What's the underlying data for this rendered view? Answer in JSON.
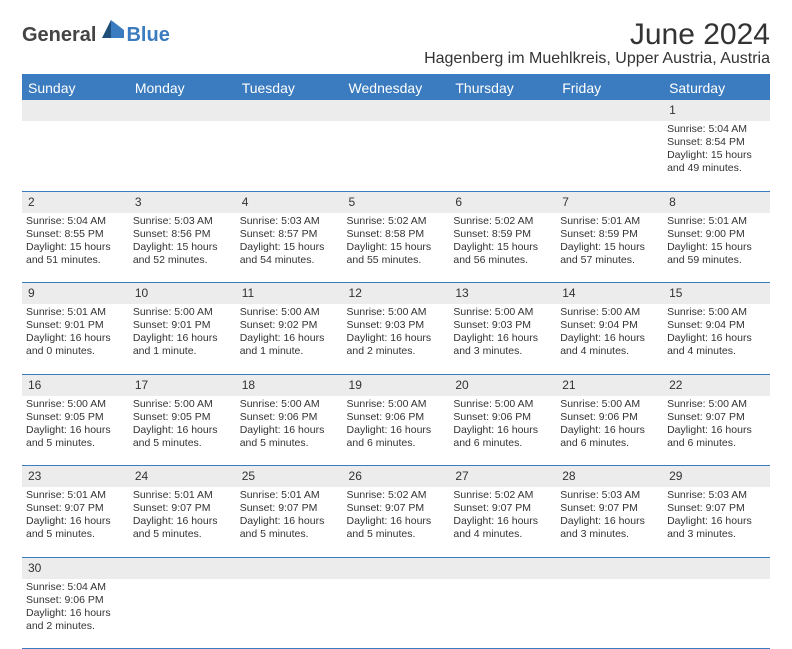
{
  "brand": {
    "part1": "General",
    "part2": "Blue"
  },
  "title": "June 2024",
  "location": "Hagenberg im Muehlkreis, Upper Austria, Austria",
  "colors": {
    "accent": "#3b7bbf",
    "header_bg": "#3b7bbf",
    "daynum_bg": "#ececec",
    "text": "#333333"
  },
  "weekdays": [
    "Sunday",
    "Monday",
    "Tuesday",
    "Wednesday",
    "Thursday",
    "Friday",
    "Saturday"
  ],
  "weeks": [
    {
      "nums": [
        "",
        "",
        "",
        "",
        "",
        "",
        "1"
      ],
      "cells": [
        null,
        null,
        null,
        null,
        null,
        null,
        {
          "sr": "Sunrise: 5:04 AM",
          "ss": "Sunset: 8:54 PM",
          "dl": "Daylight: 15 hours and 49 minutes."
        }
      ]
    },
    {
      "nums": [
        "2",
        "3",
        "4",
        "5",
        "6",
        "7",
        "8"
      ],
      "cells": [
        {
          "sr": "Sunrise: 5:04 AM",
          "ss": "Sunset: 8:55 PM",
          "dl": "Daylight: 15 hours and 51 minutes."
        },
        {
          "sr": "Sunrise: 5:03 AM",
          "ss": "Sunset: 8:56 PM",
          "dl": "Daylight: 15 hours and 52 minutes."
        },
        {
          "sr": "Sunrise: 5:03 AM",
          "ss": "Sunset: 8:57 PM",
          "dl": "Daylight: 15 hours and 54 minutes."
        },
        {
          "sr": "Sunrise: 5:02 AM",
          "ss": "Sunset: 8:58 PM",
          "dl": "Daylight: 15 hours and 55 minutes."
        },
        {
          "sr": "Sunrise: 5:02 AM",
          "ss": "Sunset: 8:59 PM",
          "dl": "Daylight: 15 hours and 56 minutes."
        },
        {
          "sr": "Sunrise: 5:01 AM",
          "ss": "Sunset: 8:59 PM",
          "dl": "Daylight: 15 hours and 57 minutes."
        },
        {
          "sr": "Sunrise: 5:01 AM",
          "ss": "Sunset: 9:00 PM",
          "dl": "Daylight: 15 hours and 59 minutes."
        }
      ]
    },
    {
      "nums": [
        "9",
        "10",
        "11",
        "12",
        "13",
        "14",
        "15"
      ],
      "cells": [
        {
          "sr": "Sunrise: 5:01 AM",
          "ss": "Sunset: 9:01 PM",
          "dl": "Daylight: 16 hours and 0 minutes."
        },
        {
          "sr": "Sunrise: 5:00 AM",
          "ss": "Sunset: 9:01 PM",
          "dl": "Daylight: 16 hours and 1 minute."
        },
        {
          "sr": "Sunrise: 5:00 AM",
          "ss": "Sunset: 9:02 PM",
          "dl": "Daylight: 16 hours and 1 minute."
        },
        {
          "sr": "Sunrise: 5:00 AM",
          "ss": "Sunset: 9:03 PM",
          "dl": "Daylight: 16 hours and 2 minutes."
        },
        {
          "sr": "Sunrise: 5:00 AM",
          "ss": "Sunset: 9:03 PM",
          "dl": "Daylight: 16 hours and 3 minutes."
        },
        {
          "sr": "Sunrise: 5:00 AM",
          "ss": "Sunset: 9:04 PM",
          "dl": "Daylight: 16 hours and 4 minutes."
        },
        {
          "sr": "Sunrise: 5:00 AM",
          "ss": "Sunset: 9:04 PM",
          "dl": "Daylight: 16 hours and 4 minutes."
        }
      ]
    },
    {
      "nums": [
        "16",
        "17",
        "18",
        "19",
        "20",
        "21",
        "22"
      ],
      "cells": [
        {
          "sr": "Sunrise: 5:00 AM",
          "ss": "Sunset: 9:05 PM",
          "dl": "Daylight: 16 hours and 5 minutes."
        },
        {
          "sr": "Sunrise: 5:00 AM",
          "ss": "Sunset: 9:05 PM",
          "dl": "Daylight: 16 hours and 5 minutes."
        },
        {
          "sr": "Sunrise: 5:00 AM",
          "ss": "Sunset: 9:06 PM",
          "dl": "Daylight: 16 hours and 5 minutes."
        },
        {
          "sr": "Sunrise: 5:00 AM",
          "ss": "Sunset: 9:06 PM",
          "dl": "Daylight: 16 hours and 6 minutes."
        },
        {
          "sr": "Sunrise: 5:00 AM",
          "ss": "Sunset: 9:06 PM",
          "dl": "Daylight: 16 hours and 6 minutes."
        },
        {
          "sr": "Sunrise: 5:00 AM",
          "ss": "Sunset: 9:06 PM",
          "dl": "Daylight: 16 hours and 6 minutes."
        },
        {
          "sr": "Sunrise: 5:00 AM",
          "ss": "Sunset: 9:07 PM",
          "dl": "Daylight: 16 hours and 6 minutes."
        }
      ]
    },
    {
      "nums": [
        "23",
        "24",
        "25",
        "26",
        "27",
        "28",
        "29"
      ],
      "cells": [
        {
          "sr": "Sunrise: 5:01 AM",
          "ss": "Sunset: 9:07 PM",
          "dl": "Daylight: 16 hours and 5 minutes."
        },
        {
          "sr": "Sunrise: 5:01 AM",
          "ss": "Sunset: 9:07 PM",
          "dl": "Daylight: 16 hours and 5 minutes."
        },
        {
          "sr": "Sunrise: 5:01 AM",
          "ss": "Sunset: 9:07 PM",
          "dl": "Daylight: 16 hours and 5 minutes."
        },
        {
          "sr": "Sunrise: 5:02 AM",
          "ss": "Sunset: 9:07 PM",
          "dl": "Daylight: 16 hours and 5 minutes."
        },
        {
          "sr": "Sunrise: 5:02 AM",
          "ss": "Sunset: 9:07 PM",
          "dl": "Daylight: 16 hours and 4 minutes."
        },
        {
          "sr": "Sunrise: 5:03 AM",
          "ss": "Sunset: 9:07 PM",
          "dl": "Daylight: 16 hours and 3 minutes."
        },
        {
          "sr": "Sunrise: 5:03 AM",
          "ss": "Sunset: 9:07 PM",
          "dl": "Daylight: 16 hours and 3 minutes."
        }
      ]
    },
    {
      "nums": [
        "30",
        "",
        "",
        "",
        "",
        "",
        ""
      ],
      "cells": [
        {
          "sr": "Sunrise: 5:04 AM",
          "ss": "Sunset: 9:06 PM",
          "dl": "Daylight: 16 hours and 2 minutes."
        },
        null,
        null,
        null,
        null,
        null,
        null
      ]
    }
  ]
}
